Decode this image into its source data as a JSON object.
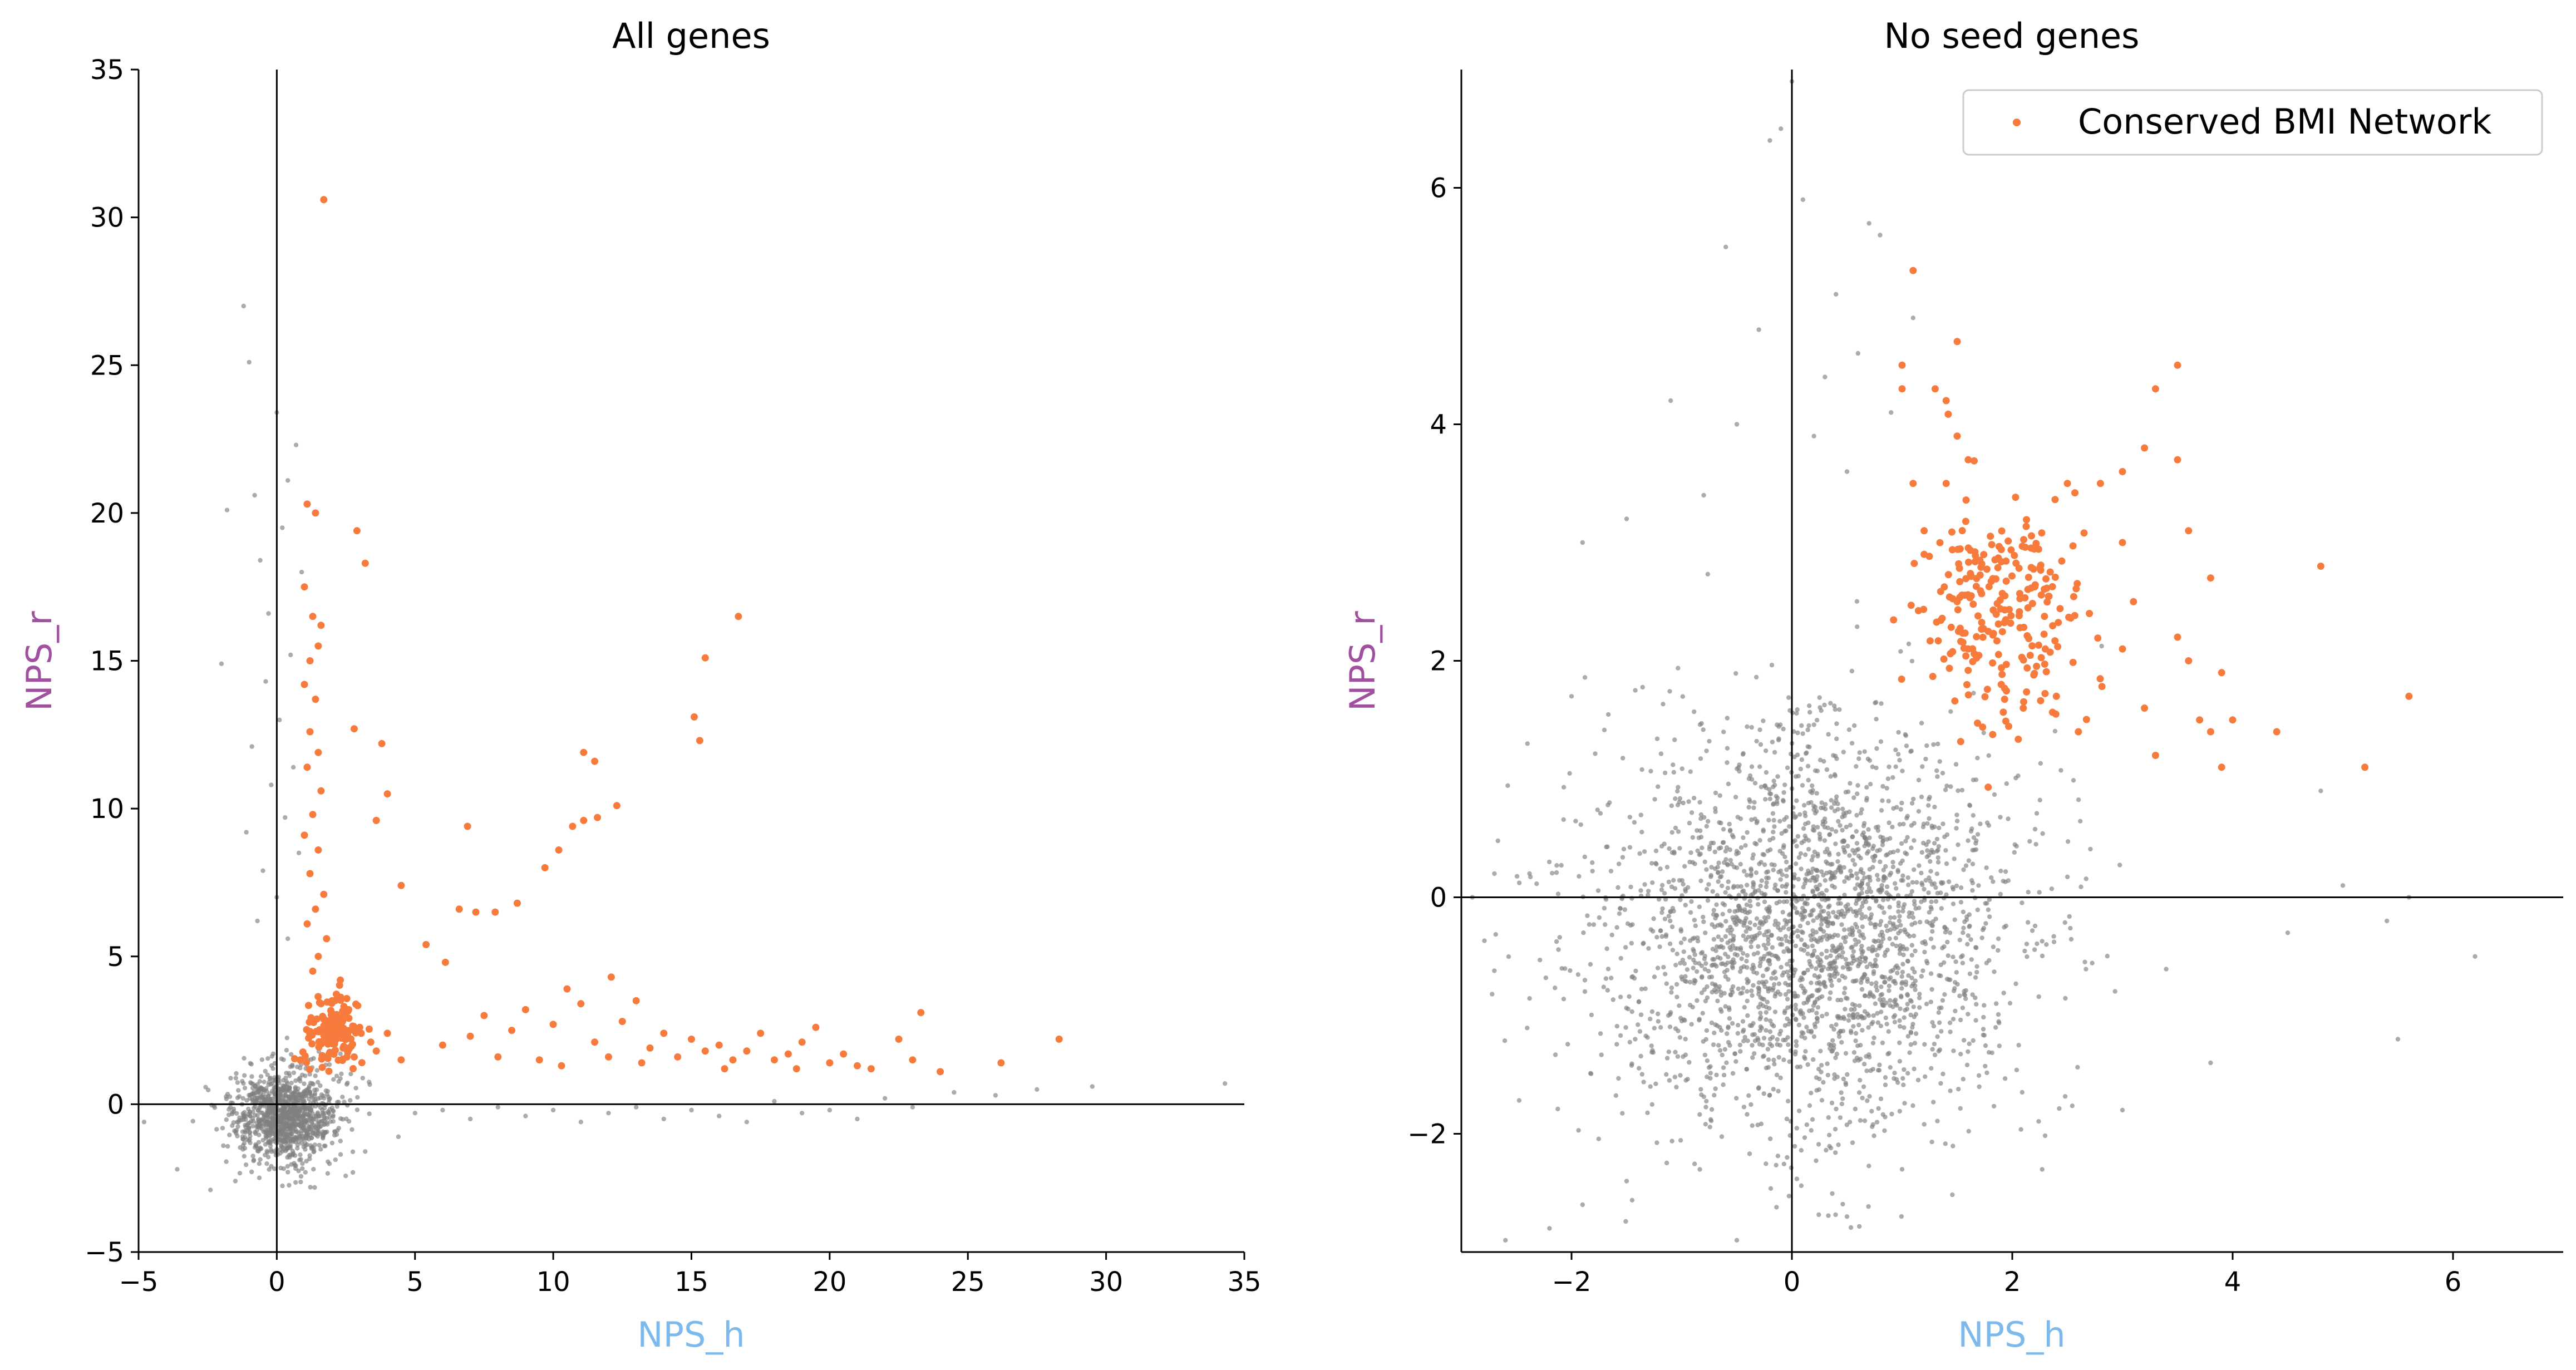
{
  "chart_data": [
    {
      "type": "scatter",
      "title": "All genes",
      "xlabel": "NPS_h",
      "ylabel": "NPS_r",
      "xlim": [
        -5,
        35
      ],
      "ylim": [
        -5,
        35
      ],
      "xticks": [
        -5,
        0,
        5,
        10,
        15,
        20,
        25,
        30,
        35
      ],
      "yticks": [
        -5,
        0,
        5,
        10,
        15,
        20,
        25,
        30,
        35
      ],
      "xtick_labels": [
        "−5",
        "0",
        "5",
        "10",
        "15",
        "20",
        "25",
        "30",
        "35"
      ],
      "ytick_labels": [
        "−5",
        "0",
        "5",
        "10",
        "15",
        "20",
        "25",
        "30",
        "35"
      ],
      "reference_lines": {
        "x": 0,
        "y": 0
      },
      "grid": false,
      "legend": null,
      "series": [
        {
          "role": "background",
          "color": "#808080",
          "cluster": {
            "center": [
              0.3,
              -0.4
            ],
            "spread": [
              1.0,
              0.8
            ],
            "count": 1100
          },
          "tail_points": [
            [
              -1.2,
              27.0
            ],
            [
              -1.0,
              25.1
            ],
            [
              0.0,
              23.4
            ],
            [
              0.7,
              22.3
            ],
            [
              0.4,
              21.1
            ],
            [
              -1.8,
              20.1
            ],
            [
              -0.8,
              20.6
            ],
            [
              0.2,
              19.5
            ],
            [
              -0.6,
              18.4
            ],
            [
              0.9,
              18.0
            ],
            [
              -2.0,
              14.9
            ],
            [
              -0.3,
              16.6
            ],
            [
              0.5,
              15.2
            ],
            [
              -0.4,
              14.3
            ],
            [
              0.1,
              13.0
            ],
            [
              -0.9,
              12.1
            ],
            [
              0.6,
              11.4
            ],
            [
              -0.2,
              10.8
            ],
            [
              0.3,
              9.7
            ],
            [
              -1.1,
              9.2
            ],
            [
              0.8,
              8.5
            ],
            [
              -0.5,
              7.9
            ],
            [
              0.0,
              7.0
            ],
            [
              -0.7,
              6.2
            ],
            [
              0.4,
              5.6
            ],
            [
              5.0,
              -0.3
            ],
            [
              6.0,
              -0.2
            ],
            [
              7.0,
              -0.5
            ],
            [
              8.0,
              -0.1
            ],
            [
              9.0,
              -0.4
            ],
            [
              10.0,
              -0.2
            ],
            [
              11.0,
              -0.6
            ],
            [
              12.0,
              -0.3
            ],
            [
              13.0,
              -0.1
            ],
            [
              14.0,
              -0.5
            ],
            [
              15.0,
              -0.2
            ],
            [
              16.0,
              -0.4
            ],
            [
              17.0,
              -0.6
            ],
            [
              18.0,
              0.1
            ],
            [
              19.0,
              -0.3
            ],
            [
              20.0,
              -0.2
            ],
            [
              21.0,
              -0.5
            ],
            [
              22.0,
              0.2
            ],
            [
              23.0,
              -0.1
            ],
            [
              24.5,
              0.4
            ],
            [
              26.0,
              0.3
            ],
            [
              27.5,
              0.5
            ],
            [
              29.5,
              0.6
            ],
            [
              34.3,
              0.7
            ],
            [
              -4.8,
              -0.6
            ],
            [
              -3.6,
              -2.2
            ],
            [
              -2.4,
              -2.9
            ],
            [
              -1.5,
              -2.6
            ],
            [
              3.2,
              -1.6
            ],
            [
              4.4,
              -1.1
            ]
          ]
        },
        {
          "role": "highlight",
          "name": "Conserved BMI Network",
          "color": "#f77b3c",
          "points": [
            [
              1.7,
              30.6
            ],
            [
              1.1,
              20.3
            ],
            [
              1.4,
              20.0
            ],
            [
              2.9,
              19.4
            ],
            [
              3.2,
              18.3
            ],
            [
              1.0,
              17.5
            ],
            [
              1.3,
              16.5
            ],
            [
              1.6,
              16.2
            ],
            [
              1.5,
              15.5
            ],
            [
              1.2,
              15.0
            ],
            [
              1.0,
              14.2
            ],
            [
              1.4,
              13.7
            ],
            [
              1.2,
              12.6
            ],
            [
              1.5,
              11.9
            ],
            [
              3.8,
              12.2
            ],
            [
              2.8,
              12.7
            ],
            [
              1.1,
              11.4
            ],
            [
              1.6,
              10.6
            ],
            [
              1.3,
              9.8
            ],
            [
              3.6,
              9.6
            ],
            [
              1.0,
              9.1
            ],
            [
              1.5,
              8.6
            ],
            [
              1.2,
              7.8
            ],
            [
              1.7,
              7.1
            ],
            [
              1.4,
              6.6
            ],
            [
              1.1,
              6.1
            ],
            [
              1.8,
              5.6
            ],
            [
              1.5,
              5.0
            ],
            [
              1.3,
              4.5
            ],
            [
              2.3,
              4.2
            ],
            [
              4.0,
              10.5
            ],
            [
              4.5,
              7.4
            ],
            [
              5.4,
              5.4
            ],
            [
              6.1,
              4.8
            ],
            [
              6.6,
              6.6
            ],
            [
              6.9,
              9.4
            ],
            [
              7.2,
              6.5
            ],
            [
              7.9,
              6.5
            ],
            [
              8.7,
              6.8
            ],
            [
              9.7,
              8.0
            ],
            [
              10.2,
              8.6
            ],
            [
              10.7,
              9.4
            ],
            [
              11.1,
              11.9
            ],
            [
              11.5,
              11.6
            ],
            [
              11.1,
              9.6
            ],
            [
              11.6,
              9.7
            ],
            [
              12.3,
              10.1
            ],
            [
              12.1,
              4.3
            ],
            [
              15.1,
              13.1
            ],
            [
              15.3,
              12.3
            ],
            [
              15.5,
              15.1
            ],
            [
              16.7,
              16.5
            ],
            [
              7.5,
              3.0
            ],
            [
              8.5,
              2.5
            ],
            [
              9.0,
              3.2
            ],
            [
              10.0,
              2.7
            ],
            [
              10.5,
              3.9
            ],
            [
              11.0,
              3.4
            ],
            [
              11.5,
              2.1
            ],
            [
              12.5,
              2.8
            ],
            [
              13.0,
              3.5
            ],
            [
              13.5,
              1.9
            ],
            [
              14.0,
              2.4
            ],
            [
              14.5,
              1.6
            ],
            [
              15.0,
              2.2
            ],
            [
              15.5,
              1.8
            ],
            [
              16.0,
              2.0
            ],
            [
              16.5,
              1.5
            ],
            [
              17.0,
              1.8
            ],
            [
              17.5,
              2.4
            ],
            [
              18.0,
              1.5
            ],
            [
              18.5,
              1.7
            ],
            [
              19.0,
              2.1
            ],
            [
              19.5,
              2.6
            ],
            [
              20.0,
              1.4
            ],
            [
              20.5,
              1.7
            ],
            [
              21.0,
              1.3
            ],
            [
              21.5,
              1.2
            ],
            [
              22.5,
              2.2
            ],
            [
              23.0,
              1.5
            ],
            [
              23.3,
              3.1
            ],
            [
              24.0,
              1.1
            ],
            [
              26.2,
              1.4
            ],
            [
              28.3,
              2.2
            ],
            [
              6.0,
              2.0
            ],
            [
              7.0,
              2.3
            ],
            [
              8.0,
              1.6
            ],
            [
              9.5,
              1.5
            ],
            [
              10.3,
              1.3
            ],
            [
              12.0,
              1.6
            ],
            [
              13.2,
              1.4
            ],
            [
              16.2,
              1.2
            ],
            [
              18.8,
              1.2
            ],
            [
              2.0,
              3.5
            ],
            [
              2.6,
              3.2
            ],
            [
              3.0,
              2.6
            ],
            [
              3.4,
              2.1
            ],
            [
              2.4,
              1.9
            ],
            [
              1.8,
              2.3
            ],
            [
              2.2,
              2.9
            ],
            [
              1.6,
              3.4
            ],
            [
              2.8,
              1.6
            ],
            [
              3.6,
              1.8
            ],
            [
              4.0,
              2.4
            ],
            [
              4.5,
              1.5
            ]
          ],
          "cluster": {
            "center": [
              2.0,
              2.4
            ],
            "spread": [
              0.5,
              0.6
            ],
            "count": 140
          }
        }
      ]
    },
    {
      "type": "scatter",
      "title": "No seed genes",
      "xlabel": "NPS_h",
      "ylabel": "NPS_r",
      "xlim": [
        -3,
        7
      ],
      "ylim": [
        -3,
        7
      ],
      "xticks": [
        -2,
        0,
        2,
        4,
        6
      ],
      "yticks": [
        -2,
        0,
        2,
        4,
        6
      ],
      "xtick_labels": [
        "−2",
        "0",
        "2",
        "4",
        "6"
      ],
      "ytick_labels": [
        "−2",
        "0",
        "2",
        "4",
        "6"
      ],
      "reference_lines": {
        "x": 0,
        "y": 0
      },
      "grid": false,
      "legend": {
        "position": "top-right",
        "entries": [
          "Conserved BMI Network"
        ]
      },
      "series": [
        {
          "role": "background",
          "color": "#808080",
          "cluster": {
            "center": [
              0.2,
              -0.3
            ],
            "spread": [
              0.95,
              0.85
            ],
            "count": 2600
          },
          "tail_points": [
            [
              0.0,
              6.9
            ],
            [
              -0.1,
              6.5
            ],
            [
              -0.2,
              6.4
            ],
            [
              0.1,
              5.9
            ],
            [
              0.7,
              5.7
            ],
            [
              0.8,
              5.6
            ],
            [
              -0.6,
              5.5
            ],
            [
              0.4,
              5.1
            ],
            [
              -0.3,
              4.8
            ],
            [
              1.1,
              4.9
            ],
            [
              -1.1,
              4.2
            ],
            [
              0.3,
              4.4
            ],
            [
              0.6,
              4.6
            ],
            [
              -0.5,
              4.0
            ],
            [
              0.9,
              4.1
            ],
            [
              -1.5,
              3.2
            ],
            [
              -1.9,
              3.0
            ],
            [
              -0.8,
              3.4
            ],
            [
              0.2,
              3.9
            ],
            [
              0.5,
              3.6
            ],
            [
              -2.0,
              1.7
            ],
            [
              -2.4,
              1.3
            ],
            [
              -2.7,
              0.2
            ],
            [
              -2.9,
              0.0
            ],
            [
              4.5,
              -0.3
            ],
            [
              5.0,
              0.1
            ],
            [
              5.4,
              -0.2
            ],
            [
              5.6,
              0.0
            ],
            [
              6.2,
              -0.5
            ],
            [
              5.5,
              -1.2
            ],
            [
              -1.5,
              -2.4
            ],
            [
              -1.9,
              -2.6
            ],
            [
              -2.2,
              -2.8
            ],
            [
              -2.6,
              -2.9
            ],
            [
              -0.5,
              -2.9
            ],
            [
              0.5,
              -2.7
            ],
            [
              1.0,
              -2.3
            ],
            [
              3.0,
              -1.8
            ],
            [
              3.8,
              -1.4
            ],
            [
              4.8,
              0.9
            ]
          ]
        },
        {
          "role": "highlight",
          "name": "Conserved BMI Network",
          "color": "#f77b3c",
          "points": [
            [
              1.1,
              5.3
            ],
            [
              1.0,
              4.5
            ],
            [
              1.5,
              4.7
            ],
            [
              1.0,
              4.3
            ],
            [
              1.4,
              4.2
            ],
            [
              1.3,
              4.3
            ],
            [
              3.3,
              4.3
            ],
            [
              3.5,
              4.5
            ],
            [
              1.5,
              3.9
            ],
            [
              1.6,
              3.7
            ],
            [
              3.2,
              3.8
            ],
            [
              3.5,
              3.7
            ],
            [
              3.0,
              3.6
            ],
            [
              1.1,
              3.5
            ],
            [
              1.4,
              3.5
            ],
            [
              2.5,
              3.5
            ],
            [
              2.8,
              3.5
            ],
            [
              3.6,
              3.1
            ],
            [
              3.0,
              3.0
            ],
            [
              4.8,
              2.8
            ],
            [
              3.8,
              2.7
            ],
            [
              3.5,
              2.2
            ],
            [
              3.6,
              2.0
            ],
            [
              3.9,
              1.9
            ],
            [
              3.7,
              1.5
            ],
            [
              4.0,
              1.5
            ],
            [
              4.4,
              1.4
            ],
            [
              3.8,
              1.4
            ],
            [
              5.6,
              1.7
            ],
            [
              5.2,
              1.1
            ],
            [
              3.3,
              1.2
            ],
            [
              3.9,
              1.1
            ],
            [
              2.6,
              1.4
            ],
            [
              2.4,
              1.7
            ],
            [
              3.2,
              1.6
            ],
            [
              3.0,
              2.1
            ],
            [
              3.1,
              2.5
            ],
            [
              2.7,
              2.4
            ],
            [
              2.3,
              2.1
            ],
            [
              1.2,
              2.9
            ],
            [
              1.2,
              3.1
            ],
            [
              1.5,
              2.5
            ],
            [
              1.6,
              2.1
            ],
            [
              1.9,
              1.8
            ],
            [
              2.1,
              1.6
            ]
          ],
          "cluster": {
            "center": [
              1.9,
              2.4
            ],
            "spread": [
              0.35,
              0.45
            ],
            "count": 230
          }
        }
      ]
    }
  ]
}
